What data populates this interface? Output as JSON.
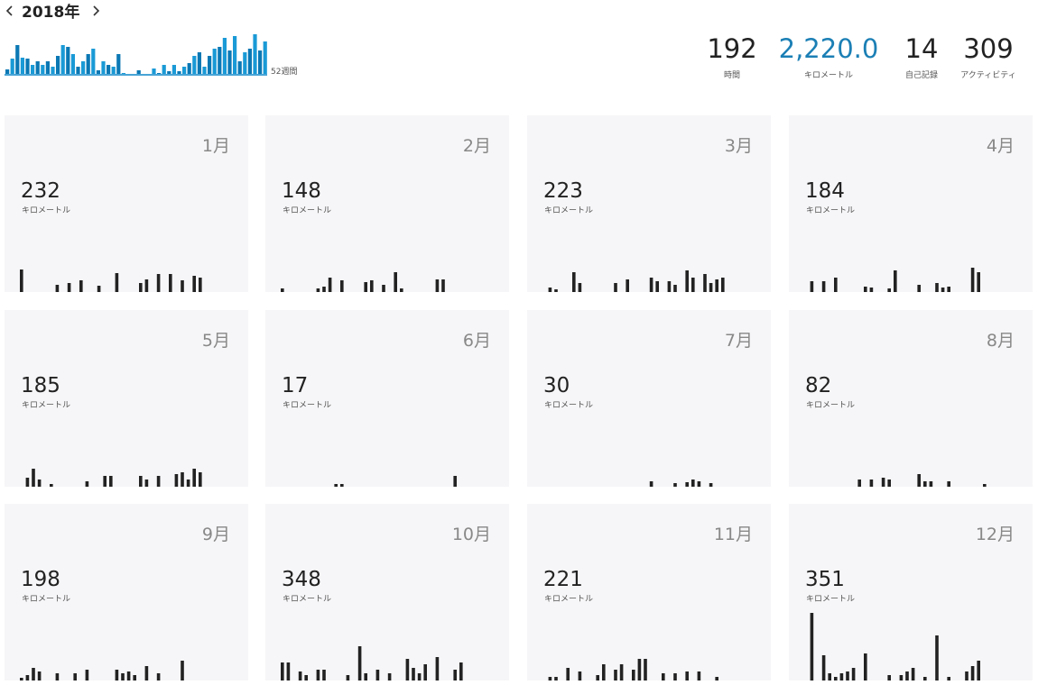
{
  "header": {
    "year": "2018年",
    "weeks_label": "52週間",
    "weekly": [
      5,
      17,
      32,
      18,
      17,
      10,
      14,
      10,
      14,
      8,
      20,
      32,
      30,
      22,
      8,
      14,
      22,
      28,
      4,
      14,
      10,
      8,
      22,
      1,
      0,
      0,
      4,
      0,
      0,
      6,
      1,
      10,
      3,
      10,
      3,
      8,
      12,
      20,
      24,
      8,
      20,
      28,
      30,
      40,
      26,
      42,
      14,
      24,
      28,
      44,
      26,
      36
    ]
  },
  "stats": [
    {
      "value": "192",
      "label": "時間"
    },
    {
      "value": "2,220.0",
      "label": "キロメートル"
    },
    {
      "value": "14",
      "label": "自己記録"
    },
    {
      "value": "309",
      "label": "アクティビティ"
    }
  ],
  "months": [
    {
      "name": "1月",
      "distance": "232",
      "unit": "キロメートル",
      "daily": [
        25,
        0,
        0,
        0,
        0,
        0,
        8,
        0,
        10,
        0,
        13,
        0,
        0,
        7,
        0,
        0,
        21,
        0,
        0,
        0,
        10,
        14,
        0,
        20,
        0,
        20,
        0,
        13,
        0,
        18,
        16
      ]
    },
    {
      "name": "2月",
      "distance": "148",
      "unit": "キロメートル",
      "daily": [
        4,
        0,
        0,
        0,
        0,
        0,
        4,
        6,
        16,
        0,
        13,
        0,
        0,
        0,
        11,
        13,
        0,
        8,
        0,
        22,
        4,
        0,
        0,
        0,
        0,
        0,
        14,
        14
      ]
    },
    {
      "name": "3月",
      "distance": "223",
      "unit": "キロメートル",
      "daily": [
        0,
        5,
        3,
        0,
        0,
        22,
        10,
        0,
        0,
        0,
        0,
        0,
        10,
        0,
        14,
        0,
        0,
        0,
        16,
        12,
        0,
        12,
        8,
        0,
        24,
        16,
        0,
        20,
        10,
        14,
        16
      ]
    },
    {
      "name": "4月",
      "distance": "184",
      "unit": "キロメートル",
      "daily": [
        0,
        12,
        0,
        12,
        0,
        16,
        0,
        0,
        0,
        0,
        6,
        5,
        0,
        0,
        4,
        24,
        0,
        0,
        0,
        8,
        0,
        0,
        10,
        5,
        6,
        0,
        0,
        0,
        27,
        22
      ]
    },
    {
      "name": "5月",
      "distance": "185",
      "unit": "キロメートル",
      "daily": [
        0,
        10,
        20,
        8,
        0,
        3,
        0,
        0,
        0,
        0,
        0,
        6,
        0,
        0,
        12,
        12,
        0,
        0,
        0,
        0,
        12,
        8,
        0,
        12,
        0,
        0,
        14,
        16,
        8,
        20,
        16
      ]
    },
    {
      "name": "6月",
      "distance": "17",
      "unit": "キロメートル",
      "daily": [
        0,
        0,
        0,
        0,
        0,
        0,
        0,
        0,
        0,
        3,
        3,
        0,
        0,
        0,
        0,
        0,
        0,
        0,
        0,
        0,
        0,
        0,
        0,
        0,
        0,
        0,
        0,
        0,
        0,
        12
      ]
    },
    {
      "name": "7月",
      "distance": "30",
      "unit": "キロメートル",
      "daily": [
        0,
        0,
        0,
        0,
        0,
        0,
        0,
        0,
        0,
        0,
        0,
        0,
        0,
        0,
        0,
        0,
        0,
        0,
        6,
        0,
        0,
        0,
        4,
        0,
        5,
        8,
        6,
        0,
        4,
        0,
        0
      ]
    },
    {
      "name": "8月",
      "distance": "82",
      "unit": "キロメートル",
      "daily": [
        0,
        0,
        0,
        0,
        0,
        0,
        0,
        0,
        0,
        8,
        0,
        8,
        0,
        10,
        8,
        0,
        0,
        0,
        0,
        14,
        6,
        6,
        0,
        0,
        6,
        0,
        0,
        0,
        0,
        0,
        3
      ]
    },
    {
      "name": "9月",
      "distance": "198",
      "unit": "キロメートル",
      "daily": [
        3,
        6,
        14,
        10,
        0,
        0,
        8,
        0,
        0,
        8,
        0,
        12,
        0,
        0,
        0,
        0,
        12,
        8,
        10,
        6,
        0,
        16,
        0,
        8,
        0,
        0,
        0,
        22,
        0,
        0
      ]
    },
    {
      "name": "10月",
      "distance": "348",
      "unit": "キロメートル",
      "daily": [
        20,
        20,
        0,
        10,
        6,
        0,
        12,
        12,
        0,
        0,
        0,
        6,
        0,
        38,
        8,
        0,
        12,
        0,
        8,
        0,
        0,
        24,
        14,
        8,
        18,
        0,
        26,
        0,
        0,
        12,
        20
      ]
    },
    {
      "name": "11月",
      "distance": "221",
      "unit": "キロメートル",
      "daily": [
        0,
        4,
        4,
        0,
        14,
        0,
        10,
        0,
        0,
        6,
        18,
        0,
        12,
        18,
        0,
        12,
        24,
        24,
        0,
        0,
        8,
        0,
        8,
        0,
        10,
        0,
        10,
        0,
        0,
        4
      ]
    },
    {
      "name": "12月",
      "distance": "351",
      "unit": "キロメートル",
      "daily": [
        0,
        75,
        0,
        28,
        8,
        4,
        8,
        10,
        14,
        0,
        30,
        0,
        0,
        0,
        6,
        0,
        6,
        10,
        14,
        0,
        4,
        0,
        50,
        0,
        4,
        0,
        0,
        10,
        16,
        22,
        0
      ]
    }
  ]
}
